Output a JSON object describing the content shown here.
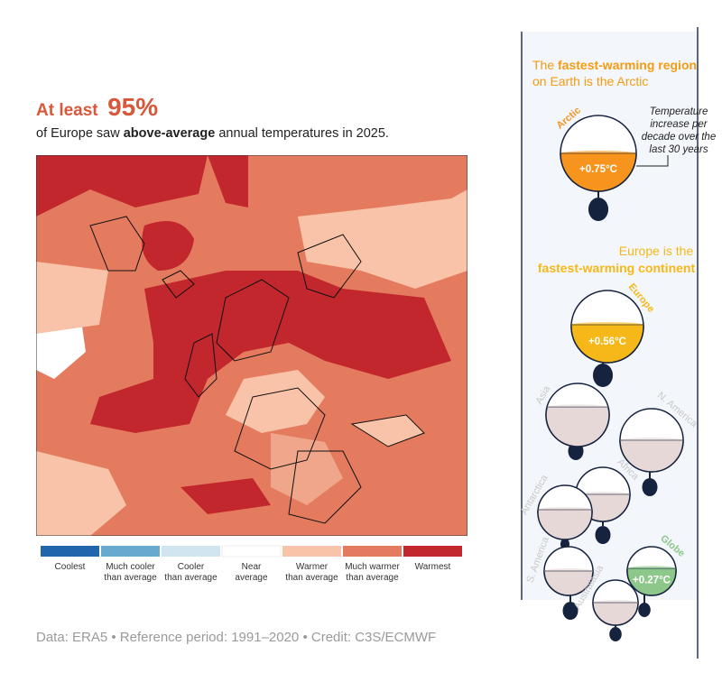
{
  "header": {
    "lead": "At least",
    "figure": "95%",
    "subtitle": {
      "before": "of Europe saw ",
      "emphasis": "above-average",
      "after": " annual temperatures in 2025."
    }
  },
  "legend": [
    {
      "lines": [
        "Coolest"
      ],
      "color": "#2166ac"
    },
    {
      "lines": [
        "Much cooler",
        "than average"
      ],
      "color": "#67a9cf"
    },
    {
      "lines": [
        "Cooler",
        "than average"
      ],
      "color": "#d1e5f0"
    },
    {
      "lines": [
        "Near",
        "average"
      ],
      "color": "#ffffff"
    },
    {
      "lines": [
        "Warmer",
        "than average"
      ],
      "color": "#f9c3a9"
    },
    {
      "lines": [
        "Much warmer",
        "than average"
      ],
      "color": "#e47b5e"
    },
    {
      "lines": [
        "Warmest"
      ],
      "color": "#c1272d"
    }
  ],
  "footer": "Data: ERA5 • Reference period: 1991–2020 • Credit: C3S/ECMWF",
  "panel": {
    "arctic_heading": {
      "before": "The ",
      "emphasis": "fastest-warming region",
      "line2": "on Earth is the Arctic"
    },
    "annotation": [
      "Temperature",
      "increase per",
      "decade over the",
      "last 30 years"
    ],
    "europe_heading": {
      "line1": "Europe is the",
      "emphasis": "fastest-warming continent"
    },
    "regions": [
      {
        "name": "Arctic",
        "value_label": "+0.75°C",
        "color": "#f7941d"
      },
      {
        "name": "Europe",
        "value_label": "+0.56°C",
        "color": "#f6b818"
      },
      {
        "name": "Asia",
        "color": "#e6d8d6"
      },
      {
        "name": "N. America",
        "color": "#e6d8d6"
      },
      {
        "name": "Africa",
        "color": "#e6d8d6"
      },
      {
        "name": "Antarctica",
        "color": "#e6d8d6"
      },
      {
        "name": "S. America",
        "color": "#e6d8d6"
      },
      {
        "name": "Globe",
        "value_label": "+0.27°C",
        "color": "#8dc88a"
      },
      {
        "name": "Australasia",
        "color": "#e6d8d6"
      }
    ]
  }
}
